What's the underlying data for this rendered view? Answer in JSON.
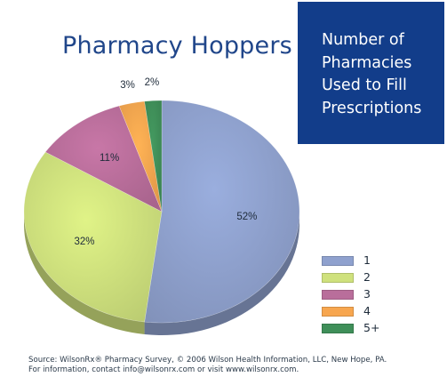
{
  "chart_data": {
    "type": "pie",
    "title": "Pharmacy Hoppers",
    "subtitle_lines": [
      "Number of",
      "Pharmacies",
      "Used to Fill",
      "Prescriptions"
    ],
    "categories": [
      "1",
      "2",
      "3",
      "4",
      "5+"
    ],
    "values": [
      52,
      32,
      11,
      3,
      2
    ],
    "value_labels": [
      "52%",
      "32%",
      "11%",
      "3%",
      "2%"
    ],
    "colors": [
      "#8fa1ce",
      "#cfe17d",
      "#b96e9b",
      "#f7a64f",
      "#3f8f59"
    ],
    "legend": {
      "placement": "bottom-right",
      "entries": [
        "1",
        "2",
        "3",
        "4",
        "5+"
      ]
    },
    "style": "3d-pie"
  },
  "source": {
    "line1": "Source: WilsonRx® Pharmacy Survey, © 2006 Wilson Health Information, LLC, New Hope, PA.",
    "line2": "For information, contact info@wilsonrx.com or visit www.wilsonrx.com."
  }
}
